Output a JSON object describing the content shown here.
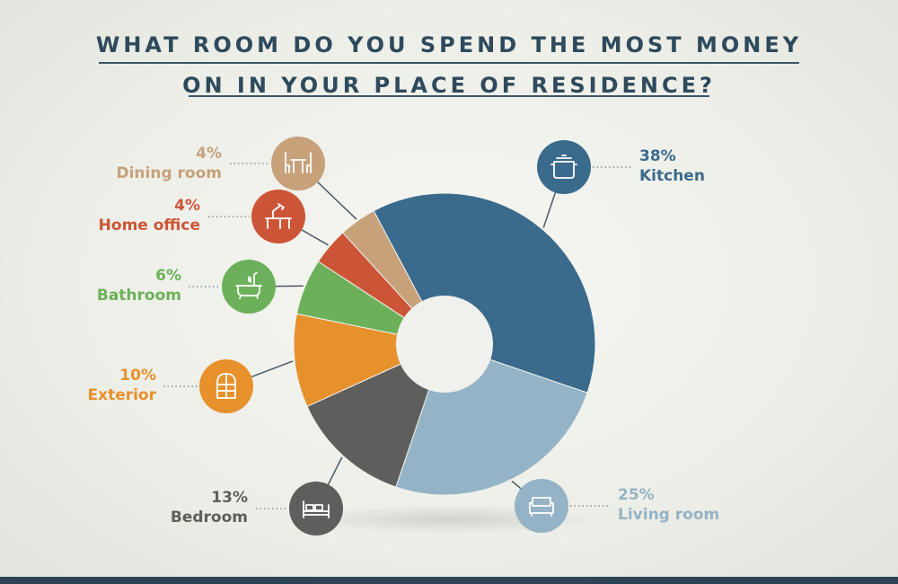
{
  "title": {
    "line1": "WHAT ROOM DO YOU SPEND THE MOST MONEY",
    "line2": "ON IN YOUR PLACE OF RESIDENCE?"
  },
  "chart_data": {
    "type": "pie",
    "title": "WHAT ROOM DO YOU SPEND THE MOST MONEY ON IN YOUR PLACE OF RESIDENCE?",
    "categories": [
      "Kitchen",
      "Living room",
      "Bedroom",
      "Exterior",
      "Bathroom",
      "Home office",
      "Dining room"
    ],
    "values": [
      38,
      25,
      13,
      10,
      6,
      4,
      4
    ],
    "value_labels": [
      "38%",
      "25%",
      "13%",
      "10%",
      "6%",
      "4%",
      "4%"
    ],
    "colors": [
      "#3a6a8c",
      "#95b3c6",
      "#5e5e5c",
      "#e6912c",
      "#6cb15a",
      "#cc5537",
      "#c7a17a"
    ],
    "icons": [
      "pot-icon",
      "sofa-icon",
      "bed-icon",
      "window-icon",
      "bathtub-icon",
      "desk-lamp-icon",
      "dining-table-icon"
    ],
    "hole": true
  }
}
